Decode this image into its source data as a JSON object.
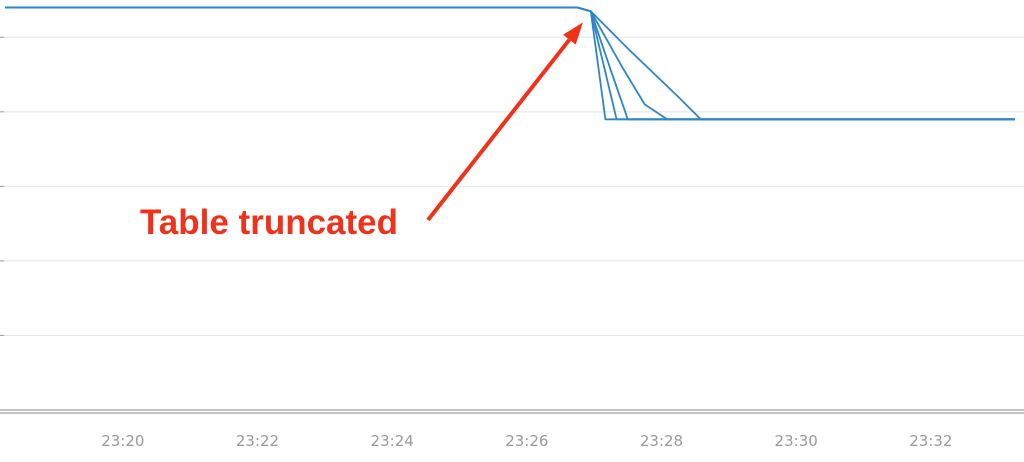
{
  "colors": {
    "series": "#2e86c8",
    "grid": "#e4e4e4",
    "axis": "#9c9c9c",
    "annotation": "#f0321b",
    "tick_text": "#9a9a9a"
  },
  "chart_data": {
    "type": "line",
    "title": "",
    "xlabel": "",
    "ylabel": "",
    "x_ticks": [
      "23:20",
      "23:22",
      "23:24",
      "23:26",
      "23:28",
      "23:30",
      "23:32"
    ],
    "xlim": [
      "23:18:15",
      "23:33:15"
    ],
    "ylim": [
      0,
      5.5
    ],
    "grid": true,
    "legend": "none",
    "series": [
      {
        "points": [
          [
            "23:18:15",
            5.4
          ],
          [
            "23:26:45",
            5.4
          ],
          [
            "23:26:57",
            5.35
          ],
          [
            "23:27:10",
            3.9
          ],
          [
            "23:27:15",
            3.9
          ],
          [
            "23:33:15",
            3.9
          ]
        ]
      },
      {
        "points": [
          [
            "23:18:15",
            5.4
          ],
          [
            "23:26:45",
            5.4
          ],
          [
            "23:26:57",
            5.35
          ],
          [
            "23:27:20",
            3.9
          ],
          [
            "23:33:15",
            3.9
          ]
        ]
      },
      {
        "points": [
          [
            "23:18:15",
            5.4
          ],
          [
            "23:26:45",
            5.4
          ],
          [
            "23:26:57",
            5.35
          ],
          [
            "23:27:15",
            4.55
          ],
          [
            "23:27:30",
            3.9
          ],
          [
            "23:33:15",
            3.9
          ]
        ]
      },
      {
        "points": [
          [
            "23:18:15",
            5.4
          ],
          [
            "23:26:45",
            5.4
          ],
          [
            "23:26:57",
            5.35
          ],
          [
            "23:27:25",
            4.6
          ],
          [
            "23:27:45",
            4.1
          ],
          [
            "23:28:05",
            3.9
          ],
          [
            "23:33:15",
            3.9
          ]
        ]
      },
      {
        "points": [
          [
            "23:18:15",
            5.4
          ],
          [
            "23:26:45",
            5.4
          ],
          [
            "23:26:57",
            5.35
          ],
          [
            "23:27:30",
            4.85
          ],
          [
            "23:28:15",
            4.2
          ],
          [
            "23:28:35",
            3.9
          ],
          [
            "23:33:15",
            3.9
          ]
        ]
      }
    ],
    "annotations": [
      {
        "text": "Table truncated",
        "arrow_to": [
          "23:26:50",
          5.2
        ]
      }
    ]
  }
}
